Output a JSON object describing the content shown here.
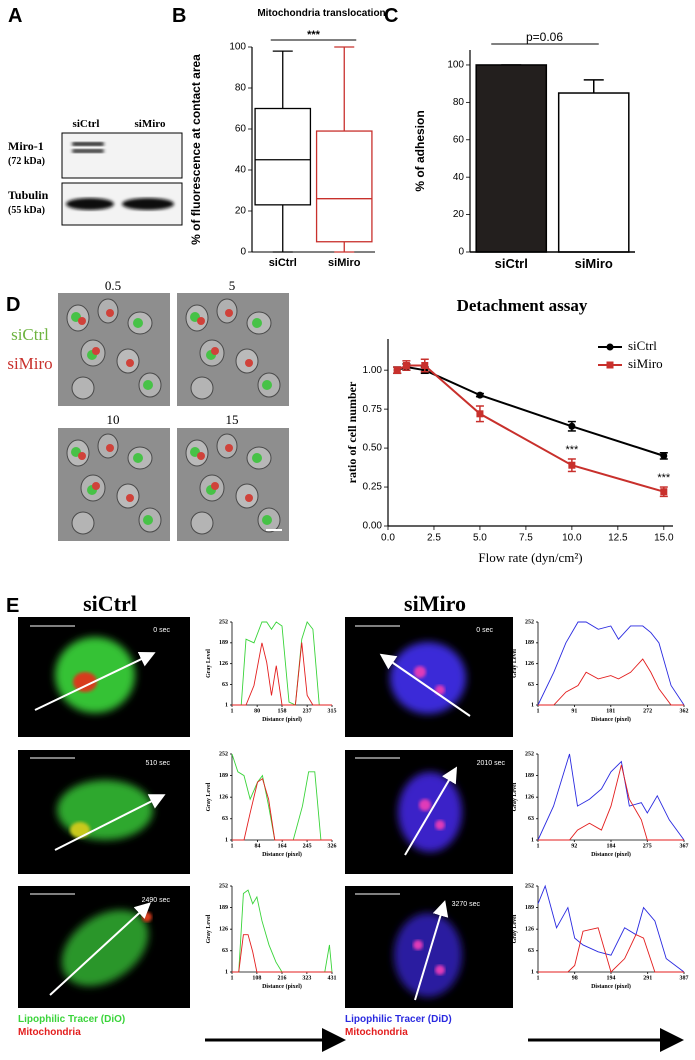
{
  "figure": {
    "panel_labels": [
      "A",
      "B",
      "C",
      "D",
      "E"
    ],
    "blot": {
      "lanes": [
        "siCtrl",
        "siMiro"
      ],
      "bands": [
        {
          "name": "Miro-1",
          "size": "(72 kDa)"
        },
        {
          "name": "Tubulin",
          "size": "(55 kDa)"
        }
      ]
    },
    "timelapse": {
      "conditions": [
        "siCtrl",
        "siMiro"
      ],
      "flow_rates": [
        "0.5",
        "5",
        "10",
        "15"
      ]
    },
    "imaging": [
      {
        "title": "siCtrl",
        "times": [
          "0 sec",
          "510 sec",
          "2490 sec"
        ],
        "legend": [
          "Lipophilic Tracer (DiO)",
          "Mitochondria"
        ]
      },
      {
        "title": "siMiro",
        "times": [
          "0 sec",
          "2010 sec",
          "3270 sec"
        ],
        "legend": [
          "Lipophilic Tracer (DiD)",
          "Mitochondria"
        ]
      }
    ]
  },
  "chart_data": [
    {
      "type": "box",
      "title": "Mitochondria translocation",
      "ylabel": "% of fluorescence at contact area",
      "categories": [
        "siCtrl",
        "siMiro"
      ],
      "boxes": [
        {
          "min": 0,
          "q1": 23,
          "median": 45,
          "q3": 70,
          "max": 98,
          "color": "#000000"
        },
        {
          "min": 0,
          "q1": 5,
          "median": 26,
          "q3": 59,
          "max": 100,
          "color": "#c8302c"
        }
      ],
      "ylim": [
        0,
        100
      ],
      "yticks": [
        0,
        20,
        40,
        60,
        80,
        100
      ],
      "annotation": "***"
    },
    {
      "type": "bar",
      "ylabel": "% of adhesion",
      "categories": [
        "siCtrl",
        "siMiro"
      ],
      "values": [
        100,
        85
      ],
      "errors": [
        0,
        7
      ],
      "colors": [
        "#231f1e",
        "#ffffff"
      ],
      "ylim": [
        0,
        108
      ],
      "yticks": [
        0,
        20,
        40,
        60,
        80,
        100
      ],
      "annotation": "p=0.06"
    },
    {
      "type": "line",
      "title": "Detachment assay",
      "xlabel": "Flow rate (dyn/cm²)",
      "ylabel": "ratio of cell number",
      "x": [
        0.5,
        1,
        2,
        5,
        10,
        15
      ],
      "series": [
        {
          "name": "siCtrl",
          "color": "#000000",
          "marker": "circle",
          "values": [
            1.0,
            1.02,
            1.0,
            0.84,
            0.64,
            0.45
          ],
          "errors": [
            0.02,
            0.02,
            0.02,
            0.01,
            0.03,
            0.02
          ]
        },
        {
          "name": "siMiro",
          "color": "#c8302c",
          "marker": "square",
          "values": [
            1.0,
            1.03,
            1.03,
            0.72,
            0.39,
            0.22
          ],
          "errors": [
            0.02,
            0.03,
            0.04,
            0.05,
            0.04,
            0.03
          ]
        }
      ],
      "annotations": [
        "***",
        "***"
      ],
      "xlim": [
        0,
        15.5
      ],
      "xticks": [
        {
          "value": 0,
          "label": "0.0"
        },
        2.5,
        {
          "value": 5,
          "label": "5.0"
        },
        7.5,
        {
          "value": 10,
          "label": "10.0"
        },
        12.5,
        {
          "value": 15,
          "label": "15.0"
        }
      ],
      "ylim": [
        0,
        1.2
      ],
      "yticks": [
        {
          "value": 0,
          "label": "0.00"
        },
        0.25,
        {
          "value": 0.5,
          "label": "0.50"
        },
        0.75,
        {
          "value": 1,
          "label": "1.00"
        }
      ],
      "legend": "upper right"
    },
    {
      "type": "line",
      "xlabel": "Distance (pixel)",
      "ylabel": "Gray Level",
      "x": [
        1,
        30,
        45,
        70,
        95,
        110,
        125,
        140,
        158,
        180,
        200,
        220,
        237,
        255,
        275,
        295,
        315
      ],
      "series": [
        {
          "color": "#3ad43a",
          "values": [
            1,
            1,
            200,
            189,
            252,
            252,
            230,
            252,
            240,
            10,
            1,
            200,
            252,
            230,
            1,
            1,
            1
          ]
        },
        {
          "color": "#e31e1e",
          "values": [
            1,
            1,
            1,
            60,
            189,
            130,
            30,
            120,
            1,
            1,
            1,
            190,
            30,
            1,
            1,
            1,
            1
          ]
        }
      ],
      "xlim": [
        1,
        315
      ],
      "xticks": [
        1,
        80,
        158,
        237,
        315
      ],
      "ylim": [
        1,
        252
      ],
      "yticks": [
        1,
        63,
        126,
        189,
        252
      ]
    },
    {
      "type": "line",
      "xlabel": "Distance (pixel)",
      "ylabel": "Gray Level",
      "x": [
        1,
        20,
        40,
        60,
        84,
        100,
        120,
        140,
        164,
        200,
        230,
        250,
        270,
        290,
        326
      ],
      "series": [
        {
          "color": "#3ad43a",
          "values": [
            252,
            200,
            189,
            120,
            170,
            189,
            100,
            1,
            1,
            1,
            100,
            200,
            200,
            1,
            1
          ]
        },
        {
          "color": "#e31e1e",
          "values": [
            1,
            1,
            1,
            80,
            170,
            180,
            120,
            1,
            1,
            1,
            1,
            1,
            1,
            1,
            1
          ]
        }
      ],
      "xlim": [
        1,
        326
      ],
      "xticks": [
        1,
        84,
        164,
        245,
        326
      ],
      "ylim": [
        1,
        252
      ],
      "yticks": [
        1,
        63,
        126,
        189,
        252
      ]
    },
    {
      "type": "line",
      "xlabel": "Distance (pixel)",
      "ylabel": "Gray Level",
      "x": [
        1,
        30,
        50,
        70,
        90,
        108,
        130,
        160,
        190,
        216,
        260,
        323,
        360,
        400,
        420,
        431
      ],
      "series": [
        {
          "color": "#3ad43a",
          "values": [
            1,
            1,
            230,
            240,
            200,
            220,
            150,
            80,
            30,
            1,
            1,
            1,
            1,
            1,
            80,
            1
          ]
        },
        {
          "color": "#e31e1e",
          "values": [
            1,
            1,
            110,
            110,
            60,
            1,
            1,
            1,
            1,
            1,
            1,
            1,
            1,
            1,
            1,
            1
          ]
        }
      ],
      "xlim": [
        1,
        431
      ],
      "xticks": [
        1,
        108,
        216,
        323,
        431
      ],
      "ylim": [
        1,
        252
      ],
      "yticks": [
        1,
        63,
        126,
        189,
        252
      ]
    },
    {
      "type": "line",
      "xlabel": "Distance (pixel)",
      "ylabel": "Gray Level",
      "x": [
        1,
        40,
        70,
        100,
        120,
        150,
        181,
        200,
        230,
        260,
        280,
        300,
        330,
        362
      ],
      "series": [
        {
          "color": "#2a2ae0",
          "values": [
            1,
            100,
            189,
            252,
            252,
            230,
            240,
            200,
            240,
            240,
            220,
            189,
            60,
            1
          ]
        },
        {
          "color": "#e31e1e",
          "values": [
            1,
            1,
            40,
            60,
            100,
            80,
            90,
            80,
            100,
            140,
            100,
            50,
            1,
            1
          ]
        }
      ],
      "xlim": [
        1,
        362
      ],
      "xticks": [
        1,
        91,
        181,
        272,
        362
      ],
      "ylim": [
        1,
        252
      ],
      "yticks": [
        1,
        63,
        126,
        189,
        252
      ]
    },
    {
      "type": "line",
      "xlabel": "Distance (pixel)",
      "ylabel": "Gray Level",
      "x": [
        1,
        40,
        80,
        100,
        130,
        160,
        184,
        210,
        230,
        260,
        275,
        300,
        330,
        367
      ],
      "series": [
        {
          "color": "#2a2ae0",
          "values": [
            1,
            100,
            252,
            100,
            120,
            150,
            200,
            230,
            100,
            110,
            80,
            130,
            60,
            1
          ]
        },
        {
          "color": "#e31e1e",
          "values": [
            1,
            1,
            1,
            30,
            50,
            30,
            100,
            220,
            120,
            60,
            1,
            1,
            1,
            1
          ]
        }
      ],
      "xlim": [
        1,
        367
      ],
      "xticks": [
        1,
        92,
        184,
        275,
        367
      ],
      "ylim": [
        1,
        252
      ],
      "yticks": [
        1,
        63,
        126,
        189,
        252
      ]
    },
    {
      "type": "line",
      "xlabel": "Distance (pixel)",
      "ylabel": "Gray Level",
      "x": [
        1,
        20,
        50,
        80,
        98,
        120,
        160,
        194,
        230,
        260,
        280,
        310,
        340,
        387
      ],
      "series": [
        {
          "color": "#2a2ae0",
          "values": [
            200,
            252,
            130,
            189,
            100,
            80,
            60,
            50,
            130,
            110,
            189,
            150,
            40,
            1
          ]
        },
        {
          "color": "#e31e1e",
          "values": [
            1,
            1,
            1,
            1,
            20,
            120,
            130,
            1,
            40,
            110,
            100,
            1,
            1,
            1
          ]
        }
      ],
      "xlim": [
        1,
        387
      ],
      "xticks": [
        1,
        98,
        194,
        291,
        387
      ],
      "ylim": [
        1,
        252
      ],
      "yticks": [
        1,
        63,
        126,
        189,
        252
      ]
    }
  ]
}
